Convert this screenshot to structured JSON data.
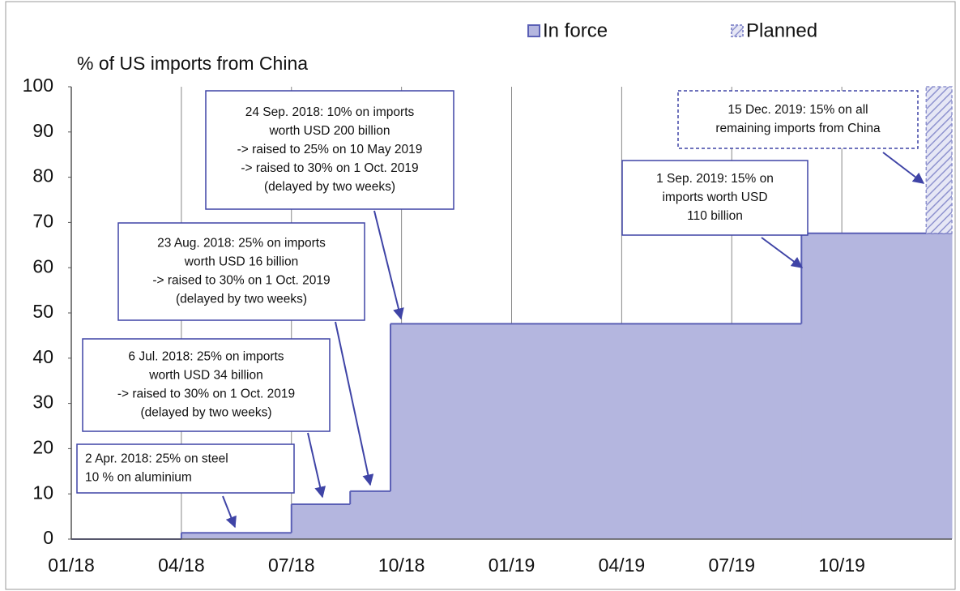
{
  "chart_data": {
    "type": "step-area",
    "y_axis_label": "% of US imports from China",
    "x": [
      0,
      3,
      6,
      7.6,
      8.7,
      19.9,
      23.3
    ],
    "series": [
      {
        "name": "In force",
        "color": "#b4b6df",
        "edge_color": "#5a5fb5",
        "values": [
          0,
          1.4,
          7.7,
          10.6,
          47.6,
          67.6,
          67.6
        ]
      },
      {
        "name": "Planned",
        "color": "#8f93cf",
        "hatched": true,
        "values": [
          null,
          null,
          null,
          null,
          null,
          null,
          100
        ]
      }
    ],
    "xlim": [
      0,
      24
    ],
    "xticks": [
      {
        "value": 0,
        "label": "01/18"
      },
      {
        "value": 3,
        "label": "04/18"
      },
      {
        "value": 6,
        "label": "07/18"
      },
      {
        "value": 9,
        "label": "10/18"
      },
      {
        "value": 12,
        "label": "01/19"
      },
      {
        "value": 15,
        "label": "04/19"
      },
      {
        "value": 18,
        "label": "07/19"
      },
      {
        "value": 21,
        "label": "10/19"
      }
    ],
    "ylim": [
      0,
      100
    ],
    "yticks": [
      0,
      10,
      20,
      30,
      40,
      50,
      60,
      70,
      80,
      90,
      100
    ],
    "grid": "x",
    "annotations": [
      {
        "lines": [
          "2 Apr. 2018: 25% on steel",
          "10 % on aluminium"
        ]
      },
      {
        "lines": [
          "6 Jul. 2018: 25% on imports",
          "worth USD 34 billion",
          "-> raised to 30% on 1 Oct. 2019",
          "(delayed by two weeks)"
        ]
      },
      {
        "lines": [
          "23 Aug. 2018: 25% on imports",
          "worth USD 16 billion",
          "-> raised to 30% on 1 Oct. 2019",
          "(delayed by two weeks)"
        ]
      },
      {
        "lines": [
          "24 Sep. 2018: 10% on imports",
          "worth USD 200 billion",
          "-> raised to 25% on 10 May 2019",
          "-> raised to 30% on 1 Oct. 2019",
          "(delayed by two weeks)"
        ]
      },
      {
        "lines": [
          "1 Sep. 2019: 15% on",
          "imports worth USD",
          "110 billion"
        ]
      },
      {
        "lines": [
          "15 Dec. 2019: 15% on all",
          "remaining imports from China"
        ]
      }
    ]
  }
}
